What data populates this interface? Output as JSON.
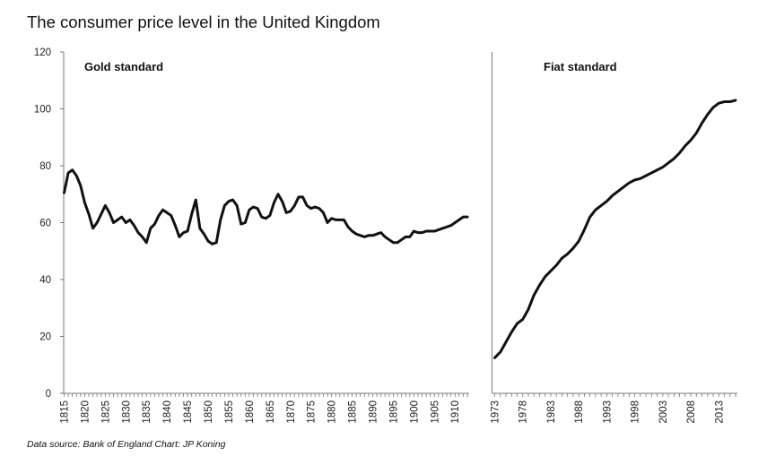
{
  "title": "The consumer price level in the United Kingdom",
  "source": "Data source: Bank of England  Chart: JP Koning",
  "chart_data": {
    "type": "line",
    "ylim": [
      0,
      120
    ],
    "yticks": [
      0,
      20,
      40,
      60,
      80,
      100,
      120
    ],
    "grid": false,
    "panels": [
      {
        "label": "Gold standard",
        "xlim": [
          1815,
          1913
        ],
        "xticks": [
          1815,
          1820,
          1825,
          1830,
          1835,
          1840,
          1845,
          1850,
          1855,
          1860,
          1865,
          1870,
          1875,
          1880,
          1885,
          1890,
          1895,
          1900,
          1905,
          1910
        ],
        "x": [
          1815,
          1816,
          1817,
          1818,
          1819,
          1820,
          1821,
          1822,
          1823,
          1824,
          1825,
          1826,
          1827,
          1828,
          1829,
          1830,
          1831,
          1832,
          1833,
          1834,
          1835,
          1836,
          1837,
          1838,
          1839,
          1840,
          1841,
          1842,
          1843,
          1844,
          1845,
          1846,
          1847,
          1848,
          1849,
          1850,
          1851,
          1852,
          1853,
          1854,
          1855,
          1856,
          1857,
          1858,
          1859,
          1860,
          1861,
          1862,
          1863,
          1864,
          1865,
          1866,
          1867,
          1868,
          1869,
          1870,
          1871,
          1872,
          1873,
          1874,
          1875,
          1876,
          1877,
          1878,
          1879,
          1880,
          1881,
          1882,
          1883,
          1884,
          1885,
          1886,
          1887,
          1888,
          1889,
          1890,
          1891,
          1892,
          1893,
          1894,
          1895,
          1896,
          1897,
          1898,
          1899,
          1900,
          1901,
          1902,
          1903,
          1904,
          1905,
          1906,
          1907,
          1908,
          1909,
          1910,
          1911,
          1912,
          1913
        ],
        "y": [
          70.5,
          77.5,
          78.5,
          76.5,
          73,
          67,
          63,
          58,
          60,
          63,
          66,
          63.5,
          60,
          61,
          62,
          60,
          61,
          59,
          56.5,
          55,
          53,
          58,
          59.5,
          62.5,
          64.5,
          63.5,
          62.5,
          59,
          55,
          56.5,
          57,
          63,
          68,
          58,
          56,
          53.5,
          52.5,
          53,
          61,
          66,
          67.5,
          68,
          66,
          59.5,
          60,
          64.5,
          65.5,
          65,
          62,
          61.5,
          62.5,
          67,
          70,
          67.5,
          63.5,
          64,
          66,
          69,
          69,
          66,
          65,
          65.5,
          65,
          63.5,
          60,
          61.5,
          61,
          61,
          61,
          58.5,
          57,
          56,
          55.5,
          55,
          55.5,
          55.5,
          56,
          56.5,
          55,
          54,
          53,
          53,
          54,
          55,
          55,
          57,
          56.5,
          56.5,
          57,
          57,
          57,
          57.5,
          58,
          58.5,
          59,
          60,
          61,
          62,
          62
        ]
      },
      {
        "label": "Fiat standard",
        "xlim": [
          1973,
          2016
        ],
        "xticks": [
          1973,
          1978,
          1983,
          1988,
          1993,
          1998,
          2003,
          2008,
          2013
        ],
        "x": [
          1973,
          1974,
          1975,
          1976,
          1977,
          1978,
          1979,
          1980,
          1981,
          1982,
          1983,
          1984,
          1985,
          1986,
          1987,
          1988,
          1989,
          1990,
          1991,
          1992,
          1993,
          1994,
          1995,
          1996,
          1997,
          1998,
          1999,
          2000,
          2001,
          2002,
          2003,
          2004,
          2005,
          2006,
          2007,
          2008,
          2009,
          2010,
          2011,
          2012,
          2013,
          2014,
          2015,
          2016
        ],
        "y": [
          12.5,
          14.5,
          18,
          21.5,
          24.5,
          26,
          29.5,
          34.5,
          38,
          41,
          43,
          45,
          47.5,
          49,
          51,
          53.5,
          57.5,
          62,
          64.5,
          66,
          67.5,
          69.5,
          71,
          72.5,
          74,
          75,
          75.5,
          76.5,
          77.5,
          78.5,
          79.5,
          81,
          82.5,
          84.5,
          87,
          89,
          91.5,
          95,
          98,
          100.5,
          102,
          102.5,
          102.5,
          103
        ]
      }
    ]
  }
}
